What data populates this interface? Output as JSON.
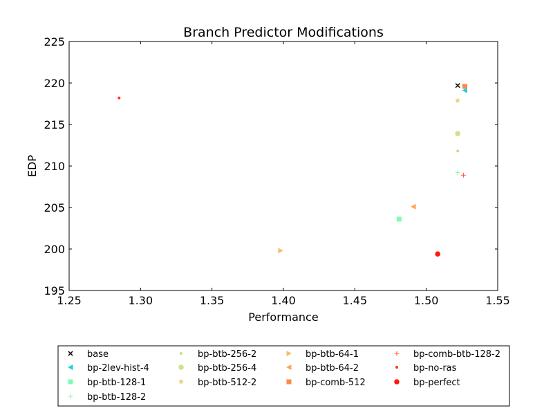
{
  "chart_data": {
    "type": "scatter",
    "title": "Branch Predictor Modifications",
    "xlabel": "Performance",
    "ylabel": "EDP",
    "xlim": [
      1.25,
      1.55
    ],
    "ylim": [
      195,
      225
    ],
    "xticks": [
      "1.25",
      "1.30",
      "1.35",
      "1.40",
      "1.45",
      "1.50",
      "1.55"
    ],
    "yticks": [
      "195",
      "200",
      "205",
      "210",
      "215",
      "220",
      "225"
    ],
    "grid": false,
    "legend_position": "bottom",
    "series": [
      {
        "name": "base",
        "x": 1.522,
        "y": 219.7,
        "marker": "x",
        "color": "#000000"
      },
      {
        "name": "bp-2lev-hist-4",
        "x": 1.527,
        "y": 219.1,
        "marker": "triangle-left",
        "color": "#1ad3de"
      },
      {
        "name": "bp-btb-128-1",
        "x": 1.481,
        "y": 203.6,
        "marker": "square",
        "color": "#7ffcb4"
      },
      {
        "name": "bp-btb-128-2",
        "x": 1.522,
        "y": 209.2,
        "marker": "plus",
        "color": "#8cf5a2"
      },
      {
        "name": "bp-btb-256-2",
        "x": 1.522,
        "y": 211.8,
        "marker": "point",
        "color": "#b4e88a"
      },
      {
        "name": "bp-btb-256-4",
        "x": 1.522,
        "y": 213.9,
        "marker": "circle",
        "color": "#cfe28a"
      },
      {
        "name": "bp-btb-512-2",
        "x": 1.522,
        "y": 217.9,
        "marker": "star",
        "color": "#e6d27a"
      },
      {
        "name": "bp-btb-64-1",
        "x": 1.398,
        "y": 199.8,
        "marker": "triangle-right",
        "color": "#f5bd6a"
      },
      {
        "name": "bp-btb-64-2",
        "x": 1.491,
        "y": 205.1,
        "marker": "triangle-left",
        "color": "#fba65c"
      },
      {
        "name": "bp-comb-512",
        "x": 1.527,
        "y": 219.6,
        "marker": "square",
        "color": "#fb8a4a"
      },
      {
        "name": "bp-comb-btb-128-2",
        "x": 1.526,
        "y": 208.9,
        "marker": "plus",
        "color": "#ff5a28"
      },
      {
        "name": "bp-no-ras",
        "x": 1.285,
        "y": 218.2,
        "marker": "point",
        "color": "#ff3420"
      },
      {
        "name": "bp-perfect",
        "x": 1.508,
        "y": 199.4,
        "marker": "circle",
        "color": "#ff1a0e"
      }
    ]
  }
}
